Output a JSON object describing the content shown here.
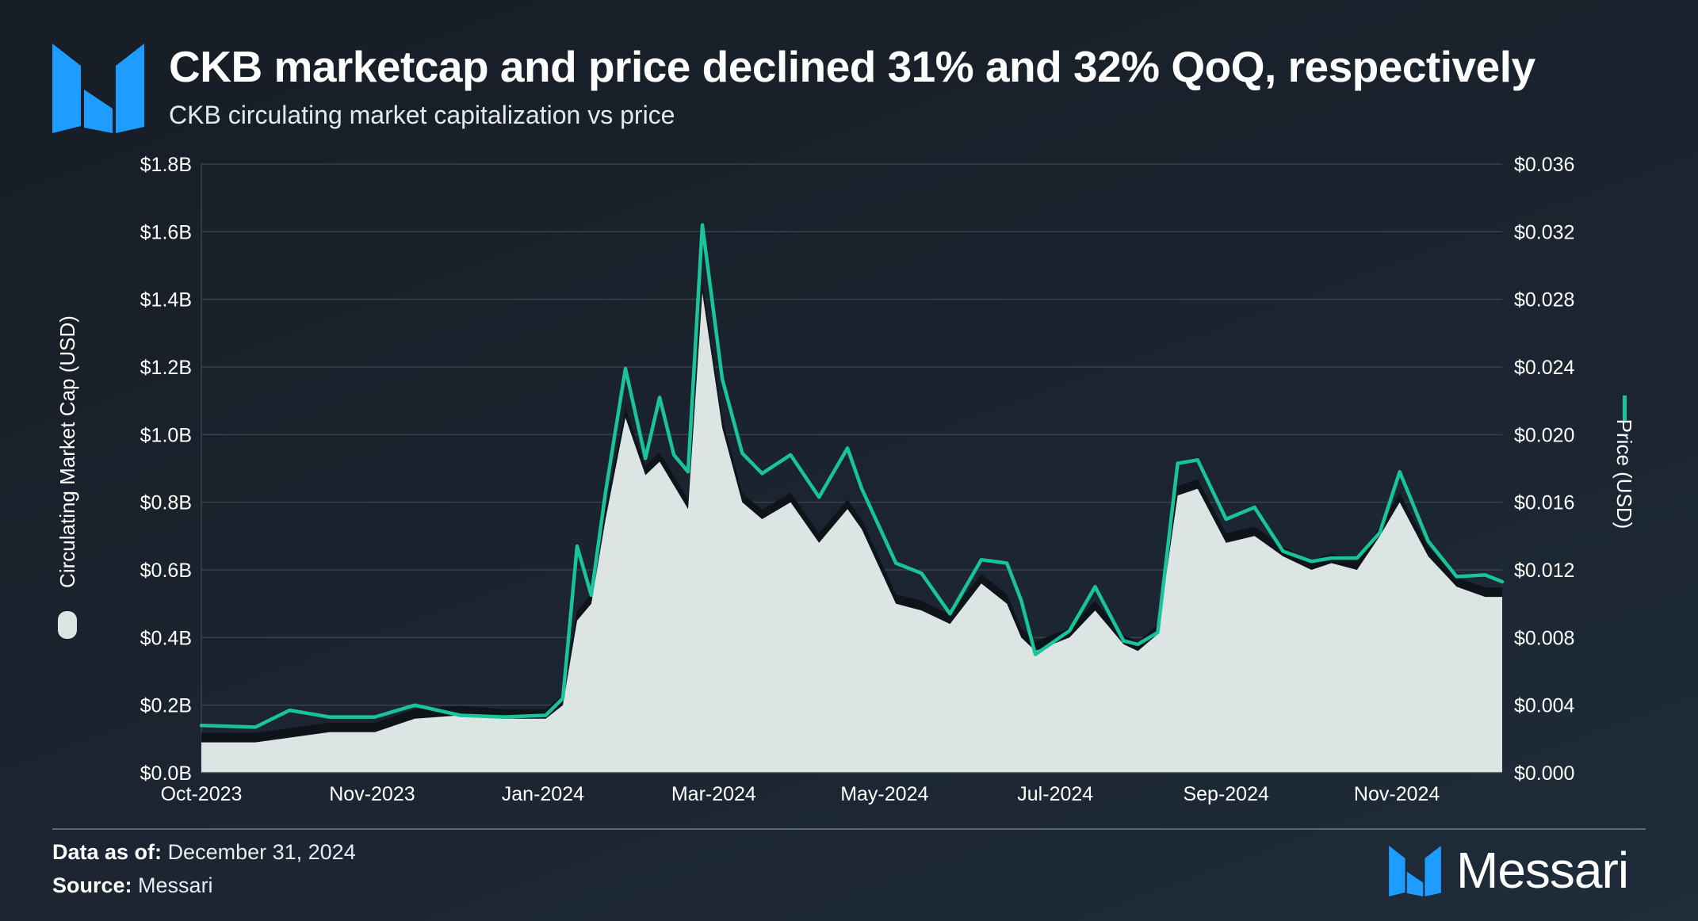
{
  "header": {
    "title": "CKB marketcap and price declined 31% and 32% QoQ, respectively",
    "subtitle": "CKB circulating market capitalization vs price"
  },
  "footer": {
    "data_as_of_label": "Data as of:",
    "data_as_of_value": "December 31, 2024",
    "source_label": "Source:",
    "source_value": "Messari",
    "brand_name": "Messari"
  },
  "colors": {
    "marketcap_fill": "#dde4e4",
    "price_line": "#19c49b",
    "brand_blue": "#1f9cff",
    "grid": "#39424c"
  },
  "chart_data": {
    "type": "area",
    "x_axis": {
      "tick_labels": [
        "Oct-2023",
        "Nov-2023",
        "Jan-2024",
        "Mar-2024",
        "May-2024",
        "Jul-2024",
        "Sep-2024",
        "Nov-2024"
      ],
      "tick_dates": [
        "2023-10-01",
        "2023-11-30",
        "2024-01-29",
        "2024-03-29",
        "2024-05-28",
        "2024-07-27",
        "2024-09-25",
        "2024-11-24"
      ],
      "range": [
        "2023-10-01",
        "2024-12-31"
      ]
    },
    "y_left": {
      "label": "Circulating Market Cap (USD)",
      "tick_labels": [
        "$0.0B",
        "$0.2B",
        "$0.4B",
        "$0.6B",
        "$0.8B",
        "$1.0B",
        "$1.2B",
        "$1.4B",
        "$1.6B",
        "$1.8B"
      ],
      "range": [
        0,
        1.8
      ],
      "unit": "B USD"
    },
    "y_right": {
      "label": "Price (USD)",
      "tick_labels": [
        "$0.000",
        "$0.004",
        "$0.008",
        "$0.012",
        "$0.016",
        "$0.020",
        "$0.024",
        "$0.028",
        "$0.032",
        "$0.036"
      ],
      "range": [
        0,
        0.036
      ]
    },
    "grid": true,
    "legend": "axis-titles",
    "series": [
      {
        "name": "Circulating Market Cap (USD)",
        "type": "area",
        "axis": "left",
        "x": [
          "2023-10-01",
          "2023-10-20",
          "2023-11-15",
          "2023-12-01",
          "2023-12-15",
          "2023-12-31",
          "2024-01-15",
          "2024-01-30",
          "2024-02-05",
          "2024-02-10",
          "2024-02-15",
          "2024-02-20",
          "2024-02-27",
          "2024-03-05",
          "2024-03-10",
          "2024-03-20",
          "2024-03-25",
          "2024-04-01",
          "2024-04-08",
          "2024-04-15",
          "2024-04-25",
          "2024-05-05",
          "2024-05-15",
          "2024-05-20",
          "2024-06-01",
          "2024-06-10",
          "2024-06-20",
          "2024-07-01",
          "2024-07-10",
          "2024-07-15",
          "2024-07-20",
          "2024-08-01",
          "2024-08-10",
          "2024-08-20",
          "2024-08-25",
          "2024-09-01",
          "2024-09-08",
          "2024-09-15",
          "2024-09-25",
          "2024-10-05",
          "2024-10-15",
          "2024-10-25",
          "2024-11-01",
          "2024-11-10",
          "2024-11-18",
          "2024-11-25",
          "2024-12-05",
          "2024-12-15",
          "2024-12-25",
          "2024-12-31"
        ],
        "values": [
          0.09,
          0.09,
          0.12,
          0.12,
          0.16,
          0.17,
          0.16,
          0.16,
          0.2,
          0.45,
          0.5,
          0.75,
          1.05,
          0.88,
          0.92,
          0.78,
          1.42,
          1.02,
          0.8,
          0.75,
          0.8,
          0.68,
          0.78,
          0.72,
          0.5,
          0.48,
          0.44,
          0.56,
          0.5,
          0.4,
          0.36,
          0.4,
          0.48,
          0.38,
          0.36,
          0.41,
          0.82,
          0.84,
          0.68,
          0.7,
          0.64,
          0.6,
          0.62,
          0.6,
          0.7,
          0.8,
          0.64,
          0.55,
          0.52,
          0.52
        ]
      },
      {
        "name": "Price (USD)",
        "type": "line",
        "axis": "right",
        "x": [
          "2023-10-01",
          "2023-10-20",
          "2023-11-01",
          "2023-11-15",
          "2023-12-01",
          "2023-12-15",
          "2023-12-31",
          "2024-01-15",
          "2024-01-30",
          "2024-02-05",
          "2024-02-10",
          "2024-02-15",
          "2024-02-20",
          "2024-02-27",
          "2024-03-05",
          "2024-03-10",
          "2024-03-15",
          "2024-03-20",
          "2024-03-25",
          "2024-04-01",
          "2024-04-08",
          "2024-04-15",
          "2024-04-25",
          "2024-05-05",
          "2024-05-15",
          "2024-05-20",
          "2024-06-01",
          "2024-06-10",
          "2024-06-20",
          "2024-07-01",
          "2024-07-10",
          "2024-07-15",
          "2024-07-20",
          "2024-08-01",
          "2024-08-10",
          "2024-08-20",
          "2024-08-25",
          "2024-09-01",
          "2024-09-08",
          "2024-09-15",
          "2024-09-25",
          "2024-10-05",
          "2024-10-15",
          "2024-10-25",
          "2024-11-01",
          "2024-11-10",
          "2024-11-18",
          "2024-11-25",
          "2024-12-05",
          "2024-12-15",
          "2024-12-25",
          "2024-12-31"
        ],
        "values": [
          0.0028,
          0.0027,
          0.0037,
          0.0033,
          0.0033,
          0.004,
          0.0034,
          0.0033,
          0.0034,
          0.0044,
          0.0134,
          0.0105,
          0.0166,
          0.0239,
          0.0186,
          0.0222,
          0.0188,
          0.0178,
          0.0324,
          0.0233,
          0.0189,
          0.0177,
          0.0188,
          0.0163,
          0.0192,
          0.0168,
          0.0124,
          0.0118,
          0.0094,
          0.0126,
          0.0124,
          0.0102,
          0.007,
          0.0084,
          0.011,
          0.0078,
          0.0076,
          0.0083,
          0.0183,
          0.0185,
          0.015,
          0.0157,
          0.0131,
          0.0125,
          0.0127,
          0.0127,
          0.0142,
          0.0178,
          0.0137,
          0.0116,
          0.0117,
          0.0113
        ]
      }
    ]
  }
}
